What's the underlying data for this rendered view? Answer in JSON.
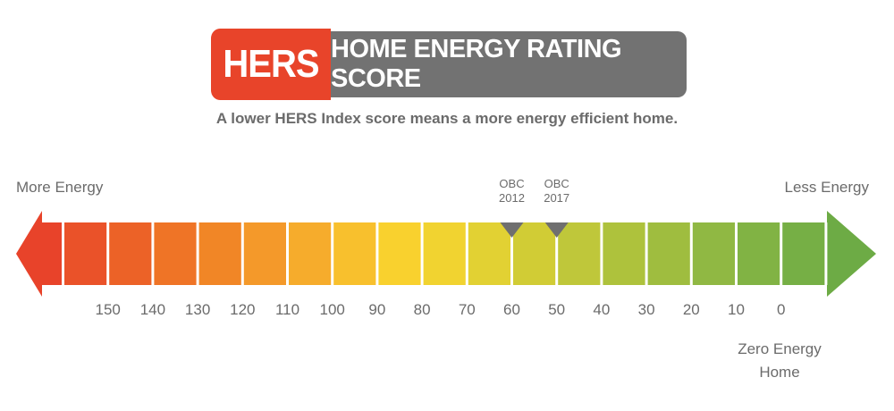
{
  "banner": {
    "badge": "HERS",
    "title": "HOME ENERGY RATING SCORE"
  },
  "subtitle": "A lower HERS Index score means a more energy efficient home.",
  "left_label": "More Energy",
  "right_label": "Less Energy",
  "code_markers": [
    {
      "label": "OBC\n2012",
      "score": 60
    },
    {
      "label": "OBC\n2017",
      "score": 50
    }
  ],
  "scale": {
    "ticks": [
      "150",
      "140",
      "130",
      "120",
      "110",
      "100",
      "90",
      "80",
      "70",
      "60",
      "50",
      "40",
      "30",
      "20",
      "10",
      "0"
    ],
    "colors": [
      "#e8432a",
      "#ea5229",
      "#ec6227",
      "#ef7426",
      "#f18626",
      "#f4992a",
      "#f6ac2c",
      "#f8c02d",
      "#f9d12e",
      "#f1d330",
      "#e2d133",
      "#d1cc35",
      "#bfc73a",
      "#aec23c",
      "#9fbd3f",
      "#90b843",
      "#81b344",
      "#76af45",
      "#6dab45"
    ],
    "marker_color": "#6f6f6f"
  },
  "zero_energy_home": "Zero Energy\nHome"
}
